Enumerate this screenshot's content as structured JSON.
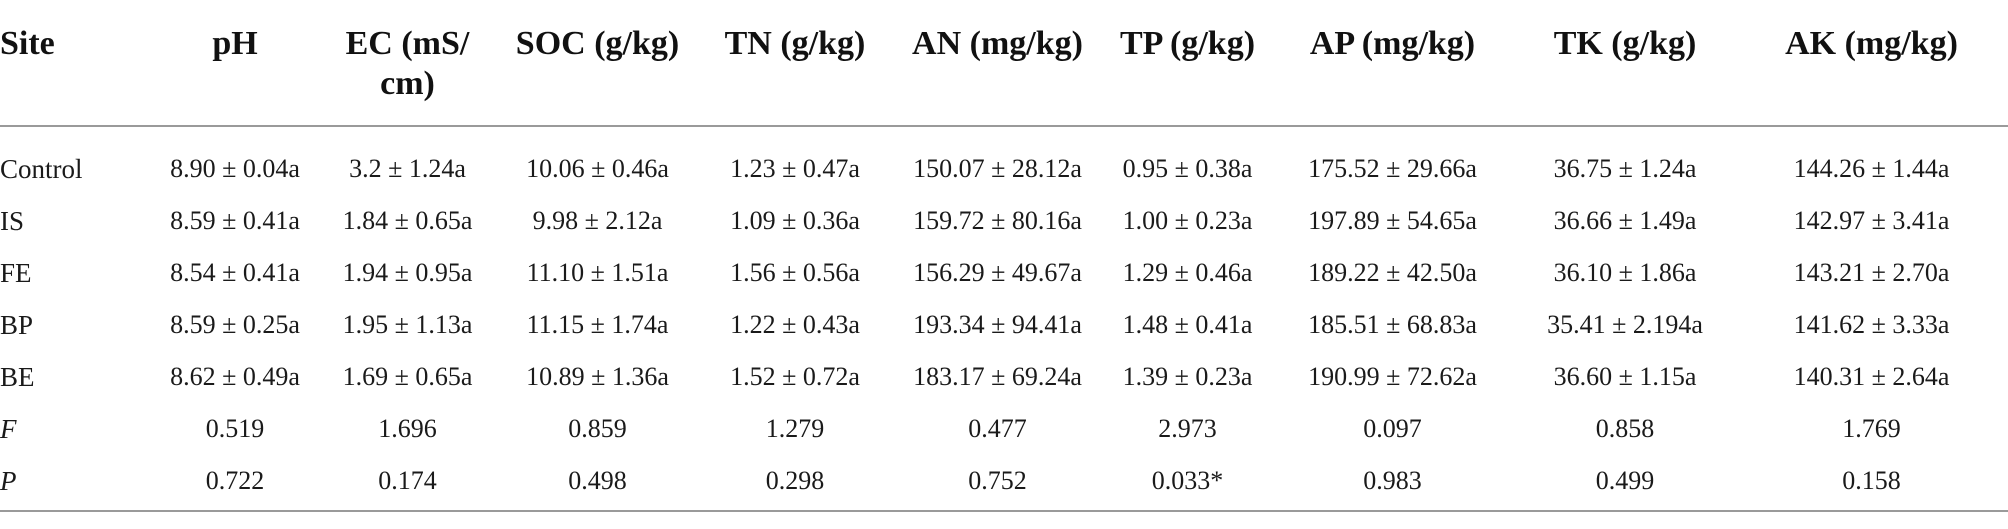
{
  "table": {
    "headers": [
      "Site",
      "pH",
      "EC (mS/\ncm)",
      "SOC (g/kg)",
      "TN (g/kg)",
      "AN (mg/kg)",
      "TP (g/kg)",
      "AP (mg/kg)",
      "TK (g/kg)",
      "AK (mg/kg)"
    ],
    "rows": [
      {
        "site": "Control",
        "cells": [
          "8.90 ± 0.04a",
          "3.2 ± 1.24a",
          "10.06 ± 0.46a",
          "1.23 ± 0.47a",
          "150.07 ± 28.12a",
          "0.95 ± 0.38a",
          "175.52 ± 29.66a",
          "36.75 ± 1.24a",
          "144.26 ± 1.44a"
        ]
      },
      {
        "site": "IS",
        "cells": [
          "8.59 ± 0.41a",
          "1.84 ± 0.65a",
          "9.98 ± 2.12a",
          "1.09 ± 0.36a",
          "159.72 ± 80.16a",
          "1.00 ± 0.23a",
          "197.89 ± 54.65a",
          "36.66 ± 1.49a",
          "142.97 ± 3.41a"
        ]
      },
      {
        "site": "FE",
        "cells": [
          "8.54 ± 0.41a",
          "1.94 ± 0.95a",
          "11.10 ± 1.51a",
          "1.56 ± 0.56a",
          "156.29 ± 49.67a",
          "1.29 ± 0.46a",
          "189.22 ± 42.50a",
          "36.10 ± 1.86a",
          "143.21 ± 2.70a"
        ]
      },
      {
        "site": "BP",
        "cells": [
          "8.59 ± 0.25a",
          "1.95 ± 1.13a",
          "11.15 ± 1.74a",
          "1.22 ± 0.43a",
          "193.34 ± 94.41a",
          "1.48 ± 0.41a",
          "185.51 ± 68.83a",
          "35.41 ± 2.194a",
          "141.62 ± 3.33a"
        ]
      },
      {
        "site": "BE",
        "cells": [
          "8.62 ± 0.49a",
          "1.69 ± 0.65a",
          "10.89 ± 1.36a",
          "1.52 ± 0.72a",
          "183.17 ± 69.24a",
          "1.39 ± 0.23a",
          "190.99 ± 72.62a",
          "36.60 ± 1.15a",
          "140.31 ± 2.64a"
        ]
      },
      {
        "site": "F",
        "italic": true,
        "cells": [
          "0.519",
          "1.696",
          "0.859",
          "1.279",
          "0.477",
          "2.973",
          "0.097",
          "0.858",
          "1.769"
        ]
      },
      {
        "site": "P",
        "italic": true,
        "cells": [
          "0.722",
          "0.174",
          "0.498",
          "0.298",
          "0.752",
          "0.033*",
          "0.983",
          "0.499",
          "0.158"
        ]
      }
    ]
  }
}
